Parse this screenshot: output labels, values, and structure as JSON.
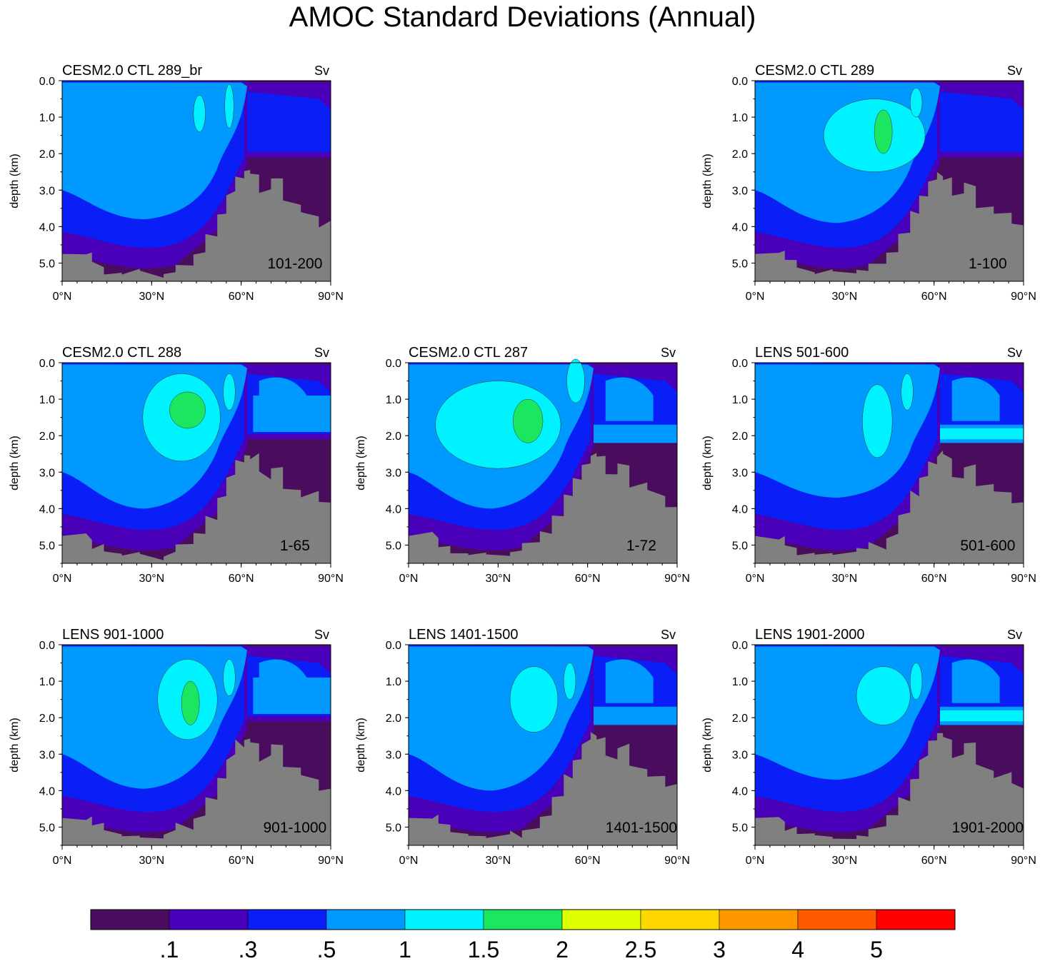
{
  "title": "AMOC Standard Deviations (Annual)",
  "unit": "Sv",
  "colors": {
    "land": "#808080",
    "levels": [
      "#4a0d5e",
      "#4a00b8",
      "#0a1ff5",
      "#0099ff",
      "#00f2ff",
      "#1ae65f",
      "#dfff00",
      "#ffd700",
      "#ff9800",
      "#ff5a00",
      "#ff0000"
    ]
  },
  "colorbar": {
    "labels": [
      ".1",
      ".3",
      ".5",
      "1",
      "1.5",
      "2",
      "2.5",
      "3",
      "4",
      "5"
    ]
  },
  "chart_data": [
    {
      "type": "heatmap",
      "title": "CESM2.0 CTL 289_br",
      "unit": "Sv",
      "period": "101-200",
      "ylabel": "depth (km)",
      "xlim": [
        0,
        90
      ],
      "ylim": [
        0,
        5.5
      ],
      "xticks": [
        "0°N",
        "30°N",
        "60°N",
        "90°N"
      ],
      "yticks": [
        "0.0",
        "1.0",
        "2.0",
        "3.0",
        "4.0",
        "5.0"
      ],
      "max_class": "1.5"
    },
    {
      "type": "heatmap",
      "title": "CESM2.0 CTL 289",
      "unit": "Sv",
      "period": "1-100",
      "ylabel": "depth (km)",
      "xlim": [
        0,
        90
      ],
      "ylim": [
        0,
        5.5
      ],
      "xticks": [
        "0°N",
        "30°N",
        "60°N",
        "90°N"
      ],
      "yticks": [
        "0.0",
        "1.0",
        "2.0",
        "3.0",
        "4.0",
        "5.0"
      ],
      "max_class": "2"
    },
    {
      "type": "heatmap",
      "title": "CESM2.0 CTL 288",
      "unit": "Sv",
      "period": "1-65",
      "ylabel": "depth (km)",
      "xlim": [
        0,
        90
      ],
      "ylim": [
        0,
        5.5
      ],
      "xticks": [
        "0°N",
        "30°N",
        "60°N",
        "90°N"
      ],
      "yticks": [
        "0.0",
        "1.0",
        "2.0",
        "3.0",
        "4.0",
        "5.0"
      ],
      "max_class": "2"
    },
    {
      "type": "heatmap",
      "title": "CESM2.0 CTL 287",
      "unit": "Sv",
      "period": "1-72",
      "ylabel": "depth (km)",
      "xlim": [
        0,
        90
      ],
      "ylim": [
        0,
        5.5
      ],
      "xticks": [
        "0°N",
        "30°N",
        "60°N",
        "90°N"
      ],
      "yticks": [
        "0.0",
        "1.0",
        "2.0",
        "3.0",
        "4.0",
        "5.0"
      ],
      "max_class": "2"
    },
    {
      "type": "heatmap",
      "title": "LENS 501-600",
      "unit": "Sv",
      "period": "501-600",
      "ylabel": "depth (km)",
      "xlim": [
        0,
        90
      ],
      "ylim": [
        0,
        5.5
      ],
      "xticks": [
        "0°N",
        "30°N",
        "60°N",
        "90°N"
      ],
      "yticks": [
        "0.0",
        "1.0",
        "2.0",
        "3.0",
        "4.0",
        "5.0"
      ],
      "max_class": "1.5"
    },
    {
      "type": "heatmap",
      "title": "LENS 901-1000",
      "unit": "Sv",
      "period": "901-1000",
      "ylabel": "depth (km)",
      "xlim": [
        0,
        90
      ],
      "ylim": [
        0,
        5.5
      ],
      "xticks": [
        "0°N",
        "30°N",
        "60°N",
        "90°N"
      ],
      "yticks": [
        "0.0",
        "1.0",
        "2.0",
        "3.0",
        "4.0",
        "5.0"
      ],
      "max_class": "2"
    },
    {
      "type": "heatmap",
      "title": "LENS 1401-1500",
      "unit": "Sv",
      "period": "1401-1500",
      "ylabel": "depth (km)",
      "xlim": [
        0,
        90
      ],
      "ylim": [
        0,
        5.5
      ],
      "xticks": [
        "0°N",
        "30°N",
        "60°N",
        "90°N"
      ],
      "yticks": [
        "0.0",
        "1.0",
        "2.0",
        "3.0",
        "4.0",
        "5.0"
      ],
      "max_class": "1.5"
    },
    {
      "type": "heatmap",
      "title": "LENS 1901-2000",
      "unit": "Sv",
      "period": "1901-2000",
      "ylabel": "depth (km)",
      "xlim": [
        0,
        90
      ],
      "ylim": [
        0,
        5.5
      ],
      "xticks": [
        "0°N",
        "30°N",
        "60°N",
        "90°N"
      ],
      "yticks": [
        "0.0",
        "1.0",
        "2.0",
        "3.0",
        "4.0",
        "5.0"
      ],
      "max_class": "1.5"
    }
  ]
}
